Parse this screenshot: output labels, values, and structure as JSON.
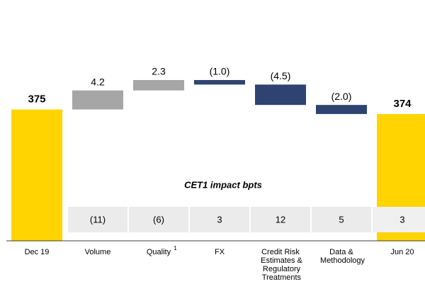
{
  "chart_data": {
    "type": "waterfall",
    "categories": [
      "Dec 19",
      "Volume",
      "Quality",
      "FX",
      "Credit Risk Estimates & Regulatory Treatments",
      "Data & Methodology",
      "Jun 20"
    ],
    "category_notes": [
      null,
      null,
      "1",
      null,
      null,
      null,
      null
    ],
    "values": [
      375,
      4.2,
      2.3,
      -1.0,
      -4.5,
      -2.0,
      374
    ],
    "value_labels": [
      "375",
      "4.2",
      "2.3",
      "(1.0)",
      "(4.5)",
      "(2.0)",
      "374"
    ],
    "total_color": "#ffd400",
    "increase_color": "#a6a6a6",
    "decrease_color": "#2e4371",
    "ylim": [
      346,
      384
    ],
    "impact": {
      "label": "CET1 impact bpts",
      "values": [
        "(11)",
        "(6)",
        "3",
        "12",
        "5",
        "3"
      ]
    }
  }
}
